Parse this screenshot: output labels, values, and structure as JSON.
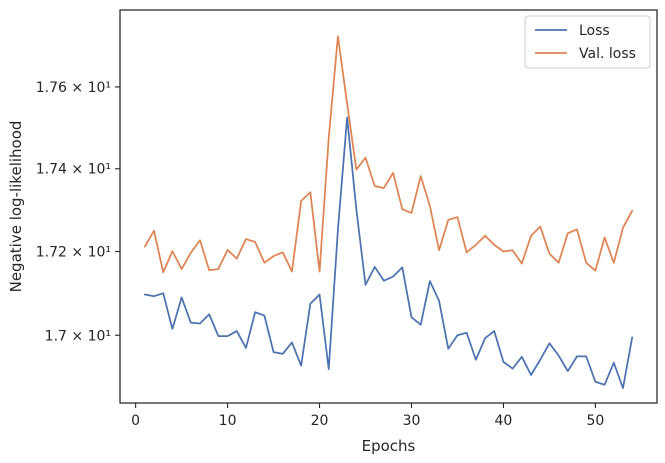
{
  "chart_data": {
    "type": "line",
    "xlabel": "Epochs",
    "ylabel": "Negative log-likelihood",
    "y_scale": "log",
    "xlim": [
      -1.7,
      56.7
    ],
    "ylim": [
      16.84,
      17.79
    ],
    "x_ticks": [
      0,
      10,
      20,
      30,
      40,
      50
    ],
    "x_tick_labels": [
      "0",
      "10",
      "20",
      "30",
      "40",
      "50"
    ],
    "y_ticks": [
      17.0,
      17.2,
      17.4,
      17.6
    ],
    "y_tick_labels": [
      "1.7 × 10¹",
      "1.72 × 10¹",
      "1.74 × 10¹",
      "1.76 × 10¹"
    ],
    "grid": false,
    "legend_position": "top-right",
    "x": [
      1,
      2,
      3,
      4,
      5,
      6,
      7,
      8,
      9,
      10,
      11,
      12,
      13,
      14,
      15,
      16,
      17,
      18,
      19,
      20,
      21,
      22,
      23,
      24,
      25,
      26,
      27,
      28,
      29,
      30,
      31,
      32,
      33,
      34,
      35,
      36,
      37,
      38,
      39,
      40,
      41,
      42,
      43,
      44,
      45,
      46,
      47,
      48,
      49,
      50,
      51,
      52,
      53,
      54
    ],
    "series": [
      {
        "name": "Loss",
        "color": "#4c72b0",
        "values": [
          17.097,
          17.093,
          17.1,
          17.015,
          17.09,
          17.03,
          17.028,
          17.05,
          16.998,
          16.998,
          17.01,
          16.97,
          17.055,
          17.047,
          16.96,
          16.956,
          16.983,
          16.928,
          17.075,
          17.097,
          16.92,
          17.253,
          17.525,
          17.302,
          17.12,
          17.163,
          17.13,
          17.14,
          17.162,
          17.043,
          17.025,
          17.129,
          17.082,
          16.968,
          17.0,
          17.006,
          16.942,
          16.993,
          17.01,
          16.937,
          16.921,
          16.949,
          16.906,
          16.942,
          16.981,
          16.952,
          16.915,
          16.95,
          16.95,
          16.89,
          16.883,
          16.935,
          16.875,
          16.995
        ]
      },
      {
        "name": "Val. loss",
        "color": "#dd8452",
        "values": [
          17.212,
          17.25,
          17.15,
          17.201,
          17.158,
          17.197,
          17.227,
          17.155,
          17.158,
          17.204,
          17.183,
          17.23,
          17.223,
          17.173,
          17.189,
          17.198,
          17.152,
          17.322,
          17.343,
          17.152,
          17.475,
          17.725,
          17.559,
          17.398,
          17.427,
          17.358,
          17.353,
          17.39,
          17.302,
          17.293,
          17.382,
          17.31,
          17.203,
          17.276,
          17.283,
          17.198,
          17.216,
          17.238,
          17.216,
          17.2,
          17.203,
          17.171,
          17.238,
          17.26,
          17.195,
          17.173,
          17.244,
          17.253,
          17.173,
          17.154,
          17.234,
          17.173,
          17.257,
          17.298
        ]
      }
    ]
  }
}
